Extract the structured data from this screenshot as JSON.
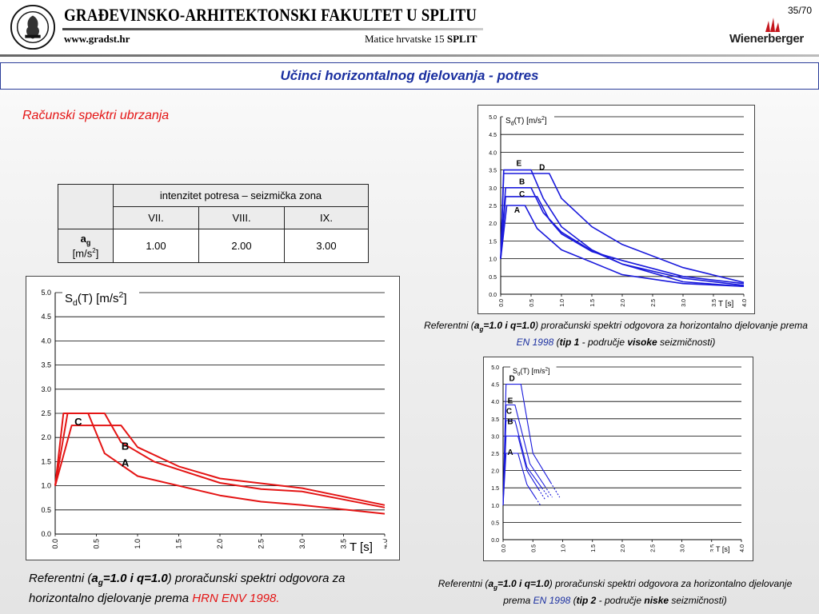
{
  "header": {
    "faculty_name": "GRAĐEVINSKO-ARHITEKTONSKI FAKULTET U SPLITU",
    "website": "www.gradst.hr",
    "address_street": "Matice hrvatske 15",
    "address_city": "SPLIT",
    "page_number": "35/70",
    "sponsor_logo_text": "Wienerberger",
    "seal_text": "SVEUČILIŠTE U SPLITU"
  },
  "slide": {
    "title": "Učinci horizontalnog djelovanja - potres",
    "subtitle": "Računski spektri ubrzanja"
  },
  "table": {
    "group_header": "intenzitet potresa – seizmička zona",
    "zones": [
      "VII.",
      "VIII.",
      "IX."
    ],
    "row_label_main": "a",
    "row_label_sub": "g",
    "row_unit_prefix": "[m/s",
    "row_unit_exp": "2",
    "row_unit_suffix": "]",
    "values": [
      "1.00",
      "2.00",
      "3.00"
    ]
  },
  "colors": {
    "red_curves": "#e41515",
    "blue_curves": "#1a1adc",
    "title_blue": "#1a2fa0"
  },
  "chart_data": [
    {
      "type": "line",
      "ylabel_main": "S",
      "ylabel_sub": "d",
      "ylabel_rest": "(T) [m/s",
      "ylabel_exp": "2",
      "ylabel_end": "]",
      "xlabel": "T [s]",
      "xlim": [
        0,
        4
      ],
      "ylim": [
        0,
        5
      ],
      "xticks": [
        "0.0",
        "0.5",
        "1.0",
        "1.5",
        "2.0",
        "2.5",
        "3.0",
        "3.5",
        "4.0"
      ],
      "yticks": [
        "0.0",
        "0.5",
        "1.0",
        "1.5",
        "2.0",
        "2.5",
        "3.0",
        "3.5",
        "4.0",
        "4.5",
        "5.0"
      ],
      "color": "#e41515",
      "series": [
        {
          "name": "A",
          "points": [
            [
              0,
              1.0
            ],
            [
              0.1,
              2.5
            ],
            [
              0.4,
              2.5
            ],
            [
              0.6,
              1.67
            ],
            [
              1,
              1.2
            ],
            [
              2,
              0.8
            ],
            [
              2.5,
              0.67
            ],
            [
              3,
              0.6
            ],
            [
              4,
              0.42
            ]
          ]
        },
        {
          "name": "B",
          "points": [
            [
              0,
              1.0
            ],
            [
              0.15,
              2.5
            ],
            [
              0.6,
              2.5
            ],
            [
              0.8,
              1.9
            ],
            [
              1.2,
              1.5
            ],
            [
              2,
              1.06
            ],
            [
              2.5,
              0.93
            ],
            [
              3,
              0.88
            ],
            [
              4,
              0.55
            ]
          ]
        },
        {
          "name": "C",
          "points": [
            [
              0,
              1.0
            ],
            [
              0.2,
              2.25
            ],
            [
              0.8,
              2.25
            ],
            [
              1,
              1.8
            ],
            [
              1.5,
              1.4
            ],
            [
              2,
              1.15
            ],
            [
              3,
              0.95
            ],
            [
              4,
              0.6
            ]
          ]
        }
      ],
      "labels": [
        {
          "text": "C",
          "x": 0.28,
          "y": 2.25
        },
        {
          "text": "B",
          "x": 0.85,
          "y": 1.75
        },
        {
          "text": "A",
          "x": 0.85,
          "y": 1.4
        }
      ],
      "caption": {
        "pre": "Referentni (",
        "a": "a",
        "g": "g",
        "mid": "=1.0 i q=1.0",
        "post": ") proračunski spektri odgovora za horizontalno djelovanje prema ",
        "norm": "HRN ENV 1998."
      }
    },
    {
      "type": "line",
      "ylabel_main": "S",
      "ylabel_sub": "d",
      "ylabel_rest": "(T) [m/s",
      "ylabel_exp": "2",
      "ylabel_end": "]",
      "xlabel": "T [s]",
      "xlim": [
        0,
        4
      ],
      "ylim": [
        0,
        5
      ],
      "xticks": [
        "0.0",
        "0.5",
        "1.0",
        "1.5",
        "2.0",
        "2.5",
        "3.0",
        "3.5",
        "4.0"
      ],
      "yticks": [
        "0.0",
        "0.5",
        "1.0",
        "1.5",
        "2.0",
        "2.5",
        "3.0",
        "3.5",
        "4.0",
        "4.5",
        "5.0"
      ],
      "color": "#1a1adc",
      "series": [
        {
          "name": "A",
          "points": [
            [
              0,
              1.0
            ],
            [
              0.1,
              2.5
            ],
            [
              0.4,
              2.5
            ],
            [
              0.6,
              1.85
            ],
            [
              1,
              1.25
            ],
            [
              1.5,
              0.9
            ],
            [
              2,
              0.55
            ],
            [
              3,
              0.3
            ],
            [
              4,
              0.22
            ]
          ]
        },
        {
          "name": "B",
          "points": [
            [
              0,
              1.0
            ],
            [
              0.08,
              3.0
            ],
            [
              0.5,
              3.0
            ],
            [
              0.7,
              2.3
            ],
            [
              1,
              1.75
            ],
            [
              1.5,
              1.22
            ],
            [
              2,
              0.85
            ],
            [
              3,
              0.45
            ],
            [
              4,
              0.25
            ]
          ]
        },
        {
          "name": "C",
          "points": [
            [
              0,
              1.0
            ],
            [
              0.08,
              2.75
            ],
            [
              0.6,
              2.75
            ],
            [
              0.8,
              2.1
            ],
            [
              1,
              1.7
            ],
            [
              1.5,
              1.2
            ],
            [
              2,
              0.95
            ],
            [
              3,
              0.5
            ],
            [
              4,
              0.3
            ]
          ]
        },
        {
          "name": "E",
          "points": [
            [
              0,
              1.0
            ],
            [
              0.05,
              3.5
            ],
            [
              0.5,
              3.5
            ],
            [
              0.7,
              2.7
            ],
            [
              1,
              1.9
            ],
            [
              1.5,
              1.25
            ],
            [
              2,
              0.85
            ],
            [
              3,
              0.35
            ],
            [
              4,
              0.22
            ]
          ]
        },
        {
          "name": "D",
          "points": [
            [
              0,
              1.0
            ],
            [
              0.05,
              3.4
            ],
            [
              0.8,
              3.4
            ],
            [
              1,
              2.7
            ],
            [
              1.5,
              1.9
            ],
            [
              2,
              1.4
            ],
            [
              3,
              0.75
            ],
            [
              4,
              0.33
            ]
          ]
        }
      ],
      "labels": [
        {
          "text": "E",
          "x": 0.3,
          "y": 3.62
        },
        {
          "text": "D",
          "x": 0.68,
          "y": 3.5
        },
        {
          "text": "B",
          "x": 0.35,
          "y": 3.1
        },
        {
          "text": "C",
          "x": 0.35,
          "y": 2.75
        },
        {
          "text": "A",
          "x": 0.27,
          "y": 2.3
        }
      ],
      "caption": {
        "pre": "Referentni (",
        "a": "a",
        "g": "g",
        "mid": "=1.0 i q=1.0",
        "post": ") proračunski spektri odgovora za horizontalno djelovanje prema ",
        "norm": "EN 1998",
        "paren_open": " (",
        "tip": "tip 1",
        "dash": " - područje ",
        "zone": "visoke",
        "end": " seizmičnosti)"
      }
    },
    {
      "type": "line",
      "ylabel_main": "S",
      "ylabel_sub": "d",
      "ylabel_rest": "(T) [m/s",
      "ylabel_exp": "2",
      "ylabel_end": "]",
      "xlabel": "T [s]",
      "xlim": [
        0,
        4
      ],
      "ylim": [
        0,
        5
      ],
      "xticks": [
        "0.0",
        "0.5",
        "1.0",
        "1.5",
        "2.0",
        "2.5",
        "3.0",
        "3.5",
        "4.0"
      ],
      "yticks": [
        "0.0",
        "0.5",
        "1.0",
        "1.5",
        "2.0",
        "2.5",
        "3.0",
        "3.5",
        "4.0",
        "4.5",
        "5.0"
      ],
      "color": "#1a1adc",
      "series": [
        {
          "name": "A",
          "points": [
            [
              0,
              1.0
            ],
            [
              0.05,
              2.5
            ],
            [
              0.25,
              2.5
            ],
            [
              0.4,
              1.6
            ],
            [
              0.55,
              1.2
            ]
          ]
        },
        {
          "name": "B",
          "points": [
            [
              0,
              1.0
            ],
            [
              0.05,
              3.0
            ],
            [
              0.25,
              3.0
            ],
            [
              0.4,
              2.0
            ],
            [
              0.6,
              1.45
            ]
          ]
        },
        {
          "name": "C",
          "points": [
            [
              0,
              1.0
            ],
            [
              0.05,
              3.45
            ],
            [
              0.2,
              3.45
            ],
            [
              0.4,
              2.1
            ],
            [
              0.65,
              1.5
            ]
          ]
        },
        {
          "name": "E",
          "points": [
            [
              0,
              1.0
            ],
            [
              0.05,
              3.9
            ],
            [
              0.2,
              3.9
            ],
            [
              0.45,
              2.2
            ],
            [
              0.7,
              1.55
            ]
          ]
        },
        {
          "name": "D",
          "points": [
            [
              0,
              1.0
            ],
            [
              0.05,
              4.5
            ],
            [
              0.3,
              4.5
            ],
            [
              0.5,
              2.5
            ],
            [
              0.8,
              1.65
            ]
          ]
        }
      ],
      "labels": [
        {
          "text": "D",
          "x": 0.15,
          "y": 4.6
        },
        {
          "text": "E",
          "x": 0.12,
          "y": 3.95
        },
        {
          "text": "C",
          "x": 0.1,
          "y": 3.65
        },
        {
          "text": "B",
          "x": 0.12,
          "y": 3.35
        },
        {
          "text": "A",
          "x": 0.12,
          "y": 2.45
        }
      ],
      "caption": {
        "pre": "Referentni (",
        "a": "a",
        "g": "g",
        "mid": "=1.0 i q=1.0",
        "post": ") proračunski spektri odgovora za horizontalno djelovanje prema ",
        "norm": "EN 1998",
        "paren_open": " (",
        "tip": "tip 2",
        "dash": " - područje ",
        "zone": "niske",
        "end": " seizmičnosti)"
      }
    }
  ]
}
